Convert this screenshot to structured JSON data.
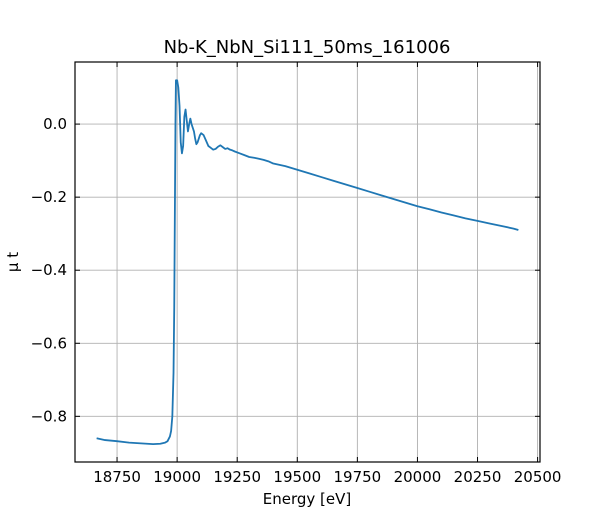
{
  "chart_data": {
    "type": "line",
    "title": "Nb-K_NbN_Si111_50ms_161006",
    "xlabel": "Energy [eV]",
    "ylabel": "μ t",
    "xlim": [
      18575,
      20510
    ],
    "ylim": [
      -0.925,
      0.17
    ],
    "grid": true,
    "xticks": [
      18750,
      19000,
      19250,
      19500,
      19750,
      20000,
      20250,
      20500
    ],
    "xtick_labels": [
      "18750",
      "19000",
      "19250",
      "19500",
      "19750",
      "20000",
      "20250",
      "20500"
    ],
    "yticks": [
      0.0,
      -0.2,
      -0.4,
      -0.6,
      -0.8
    ],
    "ytick_labels": [
      "0.0",
      "−0.2",
      "−0.4",
      "−0.6",
      "−0.8"
    ],
    "series": [
      {
        "color": "#1f77b4",
        "x": [
          18665,
          18700,
          18750,
          18800,
          18850,
          18900,
          18930,
          18950,
          18960,
          18970,
          18975,
          18980,
          18985,
          18988,
          18991,
          18993,
          18995,
          19000,
          19005,
          19010,
          19015,
          19020,
          19025,
          19030,
          19035,
          19040,
          19045,
          19050,
          19055,
          19060,
          19065,
          19070,
          19075,
          19080,
          19085,
          19090,
          19095,
          19100,
          19110,
          19120,
          19130,
          19140,
          19150,
          19160,
          19170,
          19180,
          19190,
          19200,
          19210,
          19220,
          19230,
          19240,
          19260,
          19280,
          19300,
          19320,
          19340,
          19360,
          19380,
          19400,
          19450,
          19500,
          19550,
          19600,
          19650,
          19700,
          19750,
          19800,
          19850,
          19900,
          19950,
          20000,
          20050,
          20100,
          20150,
          20200,
          20250,
          20300,
          20350,
          20400,
          20420
        ],
        "y": [
          -0.86,
          -0.865,
          -0.868,
          -0.872,
          -0.874,
          -0.876,
          -0.875,
          -0.872,
          -0.868,
          -0.855,
          -0.84,
          -0.8,
          -0.68,
          -0.5,
          -0.2,
          0.0,
          0.12,
          0.12,
          0.1,
          0.05,
          -0.05,
          -0.08,
          -0.06,
          0.02,
          0.04,
          0.01,
          -0.02,
          0.0,
          0.015,
          0.0,
          -0.01,
          -0.02,
          -0.04,
          -0.055,
          -0.05,
          -0.04,
          -0.03,
          -0.025,
          -0.03,
          -0.045,
          -0.06,
          -0.065,
          -0.07,
          -0.068,
          -0.062,
          -0.058,
          -0.063,
          -0.068,
          -0.066,
          -0.07,
          -0.072,
          -0.075,
          -0.08,
          -0.085,
          -0.09,
          -0.092,
          -0.095,
          -0.098,
          -0.102,
          -0.108,
          -0.115,
          -0.125,
          -0.135,
          -0.145,
          -0.155,
          -0.165,
          -0.175,
          -0.185,
          -0.195,
          -0.205,
          -0.215,
          -0.225,
          -0.233,
          -0.242,
          -0.25,
          -0.258,
          -0.265,
          -0.272,
          -0.279,
          -0.286,
          -0.29
        ]
      }
    ]
  }
}
